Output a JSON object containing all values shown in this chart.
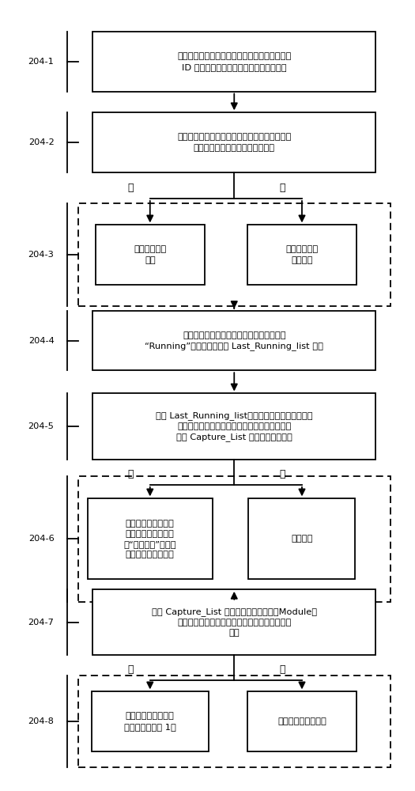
{
  "fig_width": 5.25,
  "fig_height": 10.0,
  "bg_color": "#ffffff",
  "box1_text": "采样线程周期性地捕捉运行中的事务，按照事务\nID 号存储相关运行信息入事务捕获列表中",
  "box2_text": "遍历事务捕获列表，根据遍历记录，在大事务跟\n踪表中查询该事务的记录是否存在",
  "box3l_text": "新增一条事务\n记录",
  "box3r_text": "更新该事务的\n运行时间",
  "box4_text": "查询并提取大事务跟踪表中所有运行状态为\n“Running”的事务记录入表 Last_Running_list 中；",
  "box5_text": "遍历 Last_Running_list，提取遍历事务的事务标识\n及应用模块标识，按照事务标识和应用模块标识\n在表 Capture_List 中查询是否存在；",
  "box6l_text": "更新该事务在大事务\n跟踪表中的事务状态\n为“运行结束”，监控\n系统停止监控该事务",
  "box6r_text": "不做处理",
  "box7_text": "按照 Capture_List 中记录的应用模块标识Module，\n查询热点事务跟踪表中是否存有该应用模块的记\n录；",
  "box8l_text": "插入新记录，事务执\n行累计频次设为 1；",
  "box8r_text": "更新事务执行累计频",
  "no_label": "否",
  "yes_label": "是"
}
